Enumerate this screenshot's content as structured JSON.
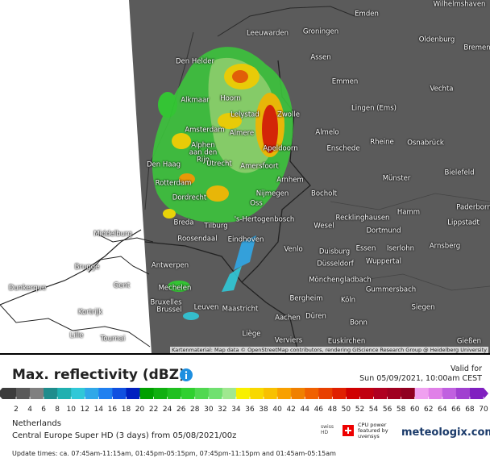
{
  "map": {
    "labels": [
      "Emden",
      "Wilhelmshaven",
      "Leeuwarden",
      "Groningen",
      "Oldenburg",
      "Bremen",
      "Den Helder",
      "Assen",
      "Emmen",
      "Vechta",
      "Alkmaar",
      "Hoorn",
      "Lelystad",
      "Zwolle",
      "Lingen (Ems)",
      "Amsterdam",
      "Almere",
      "Almelo",
      "Rheine",
      "Osnabrück",
      "Alphen aan den Rijn",
      "Apeldoorn",
      "Enschede",
      "Den Haag",
      "Utrecht",
      "Amersfoort",
      "Bielefeld",
      "Rotterdam",
      "Arnhem",
      "Münster",
      "Nijmegen",
      "Bocholt",
      "Dordrecht",
      "Oss",
      "Paderborn",
      "Hamm",
      "Recklinghausen",
      "Lippstadt",
      "'s-Hertogenbosch",
      "Breda",
      "Tilburg",
      "Wesel",
      "Dortmund",
      "Middelburg",
      "Roosendaal",
      "Eindhoven",
      "Essen",
      "Iserlohn",
      "Arnsberg",
      "Venlo",
      "Duisburg",
      "Brugge",
      "Antwerpen",
      "Düsseldorf",
      "Wuppertal",
      "Mönchengladbach",
      "Gent",
      "Mechelen",
      "Gummersbach",
      "Dunkerque",
      "Bruxelles",
      "Brussel",
      "Leuven",
      "Maastricht",
      "Bergheim",
      "Köln",
      "Siegen",
      "Kortrijk",
      "Aachen",
      "Düren",
      "Bonn",
      "Lille",
      "Tournai",
      "Liège",
      "Verviers",
      "Euskirchen",
      "Gießen"
    ],
    "attribution": "Kartenmaterial: Map data © OpenStreetMap contributors, rendering GIScience Research Group @ Heidelberg University"
  },
  "legend": {
    "title": "Max. reflectivity (dBZ)",
    "valid_label": "Valid for",
    "valid_time": "Sun 05/09/2021, 10:00am CEST",
    "ticks": [
      2,
      4,
      6,
      8,
      10,
      12,
      14,
      16,
      18,
      20,
      22,
      24,
      26,
      28,
      30,
      32,
      34,
      36,
      38,
      40,
      42,
      44,
      46,
      48,
      50,
      52,
      54,
      56,
      58,
      60,
      62,
      64,
      66,
      68,
      70
    ],
    "colors": [
      "#3c3c3c",
      "#5a5a5a",
      "#808080",
      "#1f8c8c",
      "#20b0b0",
      "#30c8d8",
      "#30a8e8",
      "#2080f0",
      "#1050e0",
      "#0020c0",
      "#00a000",
      "#10b010",
      "#20c020",
      "#30d030",
      "#50d850",
      "#70e070",
      "#a0e890",
      "#f8f000",
      "#f8d800",
      "#f8c000",
      "#f8a000",
      "#f08000",
      "#f06000",
      "#e84000",
      "#e02000",
      "#d00000",
      "#c00010",
      "#b00020",
      "#a00020",
      "#900020",
      "#f0a0f0",
      "#e080e8",
      "#c060e0",
      "#a040d0",
      "#8020c0"
    ]
  },
  "info": {
    "region": "Netherlands",
    "model": "Central Europe Super HD (3 days) from 05/08/2021/00z",
    "update_times": "Update times: ca. 07:45am-11:15am, 01:45pm-05:15pm, 07:45pm-11:15pm and 01:45am-05:15am"
  },
  "branding": {
    "badge": "swiss HD",
    "sponsor": "CPU power featured by uvensys",
    "site": "meteologix.com"
  }
}
